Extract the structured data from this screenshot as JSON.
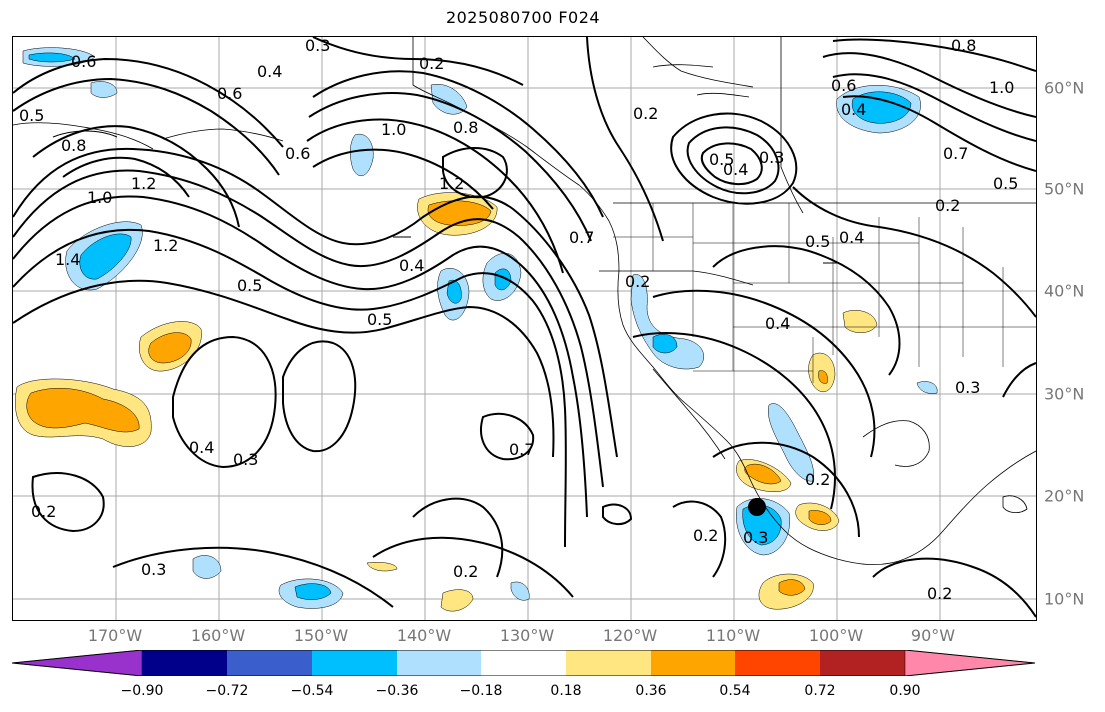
{
  "title": "2025080700 F024",
  "lon_labels": [
    "170°W",
    "160°W",
    "150°W",
    "140°W",
    "130°W",
    "120°W",
    "110°W",
    "100°W",
    "90°W"
  ],
  "lat_labels": [
    "60°N",
    "50°N",
    "40°N",
    "30°N",
    "20°N",
    "10°N"
  ],
  "contour_labels": [
    "0.6",
    "0.3",
    "0.4",
    "0.2",
    "0.6",
    "0.5",
    "0.8",
    "0.6",
    "1.0",
    "0.8",
    "1.2",
    "1.0",
    "1.2",
    "1.4",
    "1.2",
    "0.5",
    "0.4",
    "0.5",
    "0.7",
    "0.4",
    "0.3",
    "0.2",
    "0.7",
    "0.2",
    "0.3",
    "0.2",
    "0.2",
    "0.5",
    "0.4",
    "0.3",
    "0.6",
    "0.4",
    "0.8",
    "1.0",
    "0.7",
    "0.5",
    "0.5",
    "0.4",
    "0.2",
    "0.4",
    "0.3",
    "0.2",
    "0.2",
    "0.3",
    "0.2"
  ],
  "colorbar": {
    "tick_labels": [
      "−0.90",
      "−0.72",
      "−0.54",
      "−0.36",
      "−0.18",
      "0.18",
      "0.36",
      "0.54",
      "0.72",
      "0.90"
    ],
    "colors": [
      "#9932cc",
      "#00008b",
      "#3a5fcd",
      "#00bfff",
      "#afe1ff",
      "#ffffff",
      "#ffe680",
      "#ffa500",
      "#ff4500",
      "#b22222",
      "#ff88aa"
    ]
  }
}
